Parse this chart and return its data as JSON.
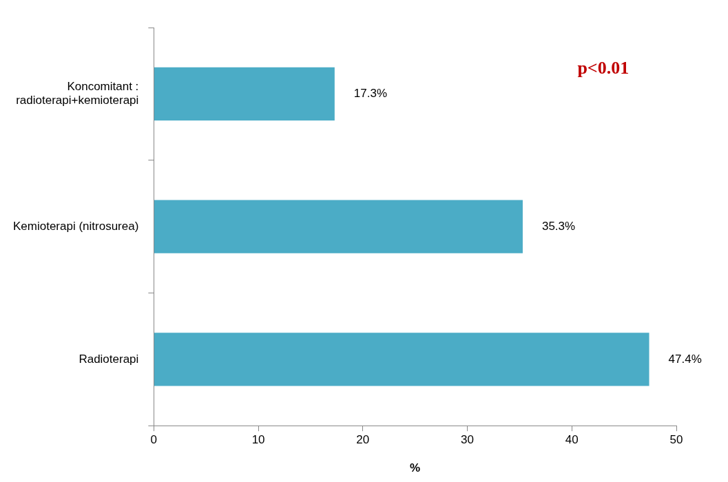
{
  "chart_data": {
    "type": "bar",
    "orientation": "horizontal",
    "categories": [
      "Koncomitant :\nradioterapi+kemioterapi",
      "Kemioterapi (nitrosurea)",
      "Radioterapi"
    ],
    "values": [
      17.3,
      35.3,
      47.4
    ],
    "value_labels": [
      "17.3%",
      "35.3%",
      "47.4%"
    ],
    "color": "#4bacc6",
    "xlim": [
      0,
      50
    ],
    "xticks": [
      0,
      10,
      20,
      30,
      40,
      50
    ],
    "xlabel": "%",
    "annotations": [
      "p<0.01"
    ],
    "grid": false,
    "legend": false
  }
}
